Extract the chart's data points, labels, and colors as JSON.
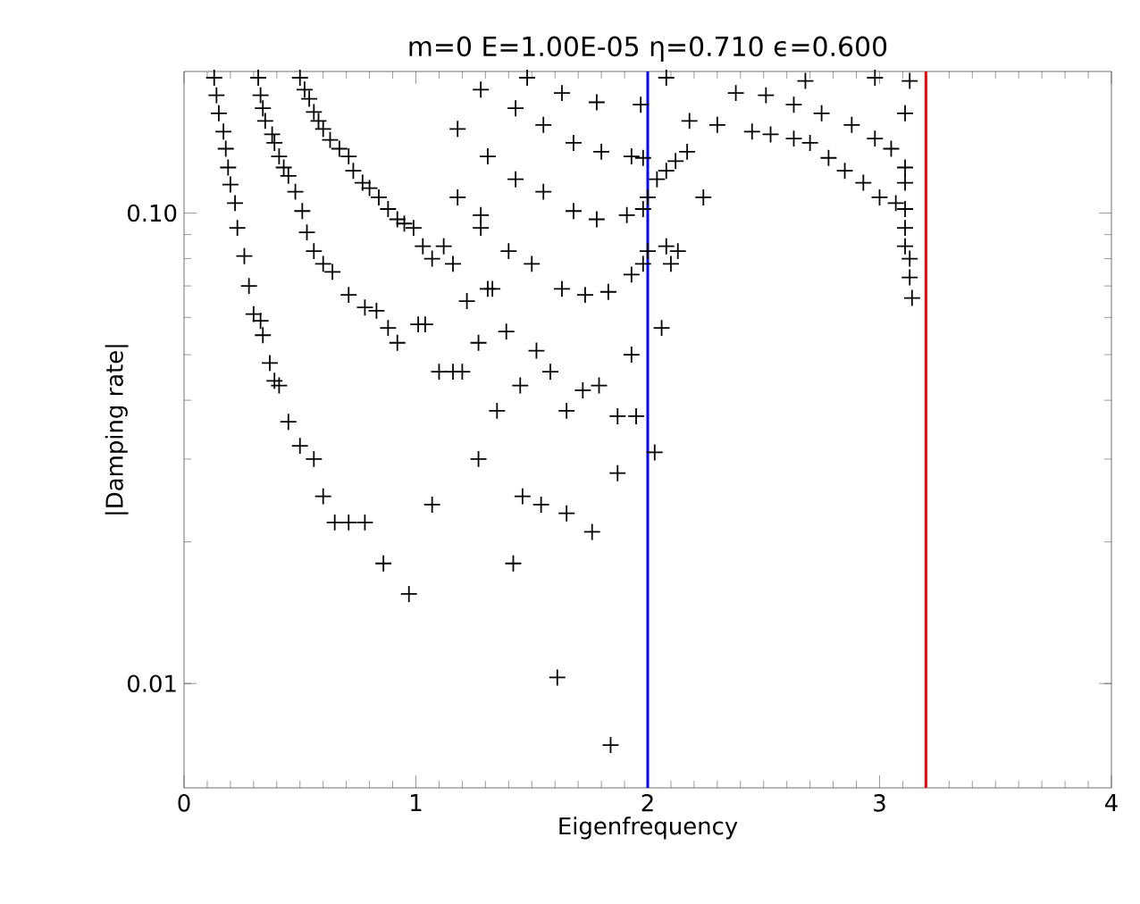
{
  "chart_data": {
    "type": "scatter",
    "title": "m=0  E=1.00E-05  η=0.710  ϵ=0.600",
    "xlabel": "Eigenfrequency",
    "ylabel": "|Damping rate|",
    "xlim": [
      0,
      4
    ],
    "xticks": [
      0,
      1,
      2,
      3,
      4
    ],
    "ylim": [
      0.006,
      0.2
    ],
    "yticks": [
      {
        "value": 0.01,
        "label": "0.01"
      },
      {
        "value": 0.1,
        "label": "0.10"
      }
    ],
    "log": "y",
    "marker": "cross",
    "ref_lines": [
      {
        "axis": "x",
        "value": 2.0,
        "color": "#0000ff",
        "line_style": "solid"
      },
      {
        "axis": "x",
        "value": 3.2,
        "color": "#ff0000",
        "line_style": "solid"
      }
    ],
    "series": [
      {
        "color": "#000000",
        "x": [
          0.13,
          0.14,
          0.15,
          0.17,
          0.18,
          0.19,
          0.2,
          0.22,
          0.23,
          0.26,
          0.28,
          0.3,
          0.33,
          0.34,
          0.37,
          0.39,
          0.41,
          0.45,
          0.5,
          0.56,
          0.6,
          0.65,
          0.71,
          0.78,
          0.86,
          0.97,
          0.32,
          0.33,
          0.34,
          0.35,
          0.38,
          0.39,
          0.41,
          0.43,
          0.45,
          0.48,
          0.51,
          0.53,
          0.56,
          0.6,
          0.64,
          0.71,
          0.78,
          0.83,
          0.88,
          0.92,
          1.01,
          1.04,
          1.1,
          1.16,
          1.2,
          1.07,
          1.27,
          1.35,
          1.45,
          1.42,
          1.46,
          1.54,
          1.65,
          1.76,
          1.61,
          1.84,
          1.87,
          1.65,
          1.72,
          1.79,
          1.87,
          1.95,
          2.03,
          1.93,
          2.06,
          1.22,
          1.27,
          1.39,
          1.33,
          1.52,
          1.58,
          0.5,
          0.52,
          0.54,
          0.56,
          0.58,
          0.6,
          0.63,
          0.67,
          0.71,
          0.73,
          0.77,
          0.8,
          0.84,
          0.88,
          0.92,
          0.95,
          0.99,
          1.03,
          1.07,
          1.12,
          1.16,
          1.28,
          1.31,
          1.18,
          1.28,
          1.4,
          1.5,
          1.63,
          1.73,
          1.83,
          1.93,
          1.98,
          1.18,
          1.31,
          1.43,
          1.55,
          1.68,
          1.78,
          1.91,
          1.98,
          1.28,
          1.43,
          1.55,
          1.68,
          1.8,
          1.93,
          1.98,
          1.48,
          1.63,
          1.78,
          1.97,
          2.0,
          2.04,
          2.08,
          2.12,
          2.17,
          2.24,
          2.0,
          2.08,
          2.13,
          2.1,
          2.18,
          2.3,
          2.45,
          2.53,
          2.63,
          2.7,
          2.78,
          2.85,
          2.93,
          3.0,
          3.07,
          3.11,
          3.11,
          3.11,
          3.13,
          3.13,
          3.14,
          2.38,
          2.51,
          2.63,
          2.75,
          2.88,
          2.98,
          3.05,
          3.11,
          3.11,
          3.11,
          3.13,
          2.08,
          2.68,
          2.98
        ],
        "values": [
          0.194,
          0.178,
          0.163,
          0.149,
          0.137,
          0.125,
          0.115,
          0.105,
          0.093,
          0.081,
          0.07,
          0.061,
          0.059,
          0.055,
          0.048,
          0.044,
          0.043,
          0.036,
          0.032,
          0.03,
          0.025,
          0.022,
          0.022,
          0.022,
          0.018,
          0.0155,
          0.194,
          0.178,
          0.167,
          0.157,
          0.147,
          0.141,
          0.132,
          0.125,
          0.12,
          0.111,
          0.101,
          0.091,
          0.083,
          0.078,
          0.075,
          0.067,
          0.063,
          0.062,
          0.057,
          0.053,
          0.058,
          0.058,
          0.046,
          0.046,
          0.046,
          0.024,
          0.03,
          0.038,
          0.043,
          0.018,
          0.025,
          0.024,
          0.023,
          0.021,
          0.0103,
          0.0074,
          0.028,
          0.038,
          0.042,
          0.043,
          0.037,
          0.037,
          0.031,
          0.05,
          0.057,
          0.065,
          0.053,
          0.056,
          0.069,
          0.051,
          0.046,
          0.194,
          0.183,
          0.175,
          0.164,
          0.157,
          0.151,
          0.143,
          0.137,
          0.132,
          0.123,
          0.116,
          0.113,
          0.108,
          0.102,
          0.097,
          0.095,
          0.093,
          0.085,
          0.08,
          0.085,
          0.078,
          0.099,
          0.069,
          0.108,
          0.093,
          0.083,
          0.078,
          0.069,
          0.067,
          0.068,
          0.074,
          0.078,
          0.151,
          0.132,
          0.118,
          0.111,
          0.101,
          0.097,
          0.099,
          0.102,
          0.183,
          0.167,
          0.154,
          0.141,
          0.135,
          0.132,
          0.131,
          0.194,
          0.18,
          0.172,
          0.17,
          0.108,
          0.118,
          0.123,
          0.129,
          0.135,
          0.108,
          0.083,
          0.085,
          0.083,
          0.078,
          0.157,
          0.154,
          0.149,
          0.147,
          0.144,
          0.141,
          0.131,
          0.123,
          0.116,
          0.108,
          0.105,
          0.102,
          0.093,
          0.085,
          0.08,
          0.073,
          0.066,
          0.18,
          0.178,
          0.17,
          0.163,
          0.154,
          0.144,
          0.137,
          0.125,
          0.116,
          0.163,
          0.191,
          0.194,
          0.191,
          0.194
        ]
      }
    ]
  }
}
